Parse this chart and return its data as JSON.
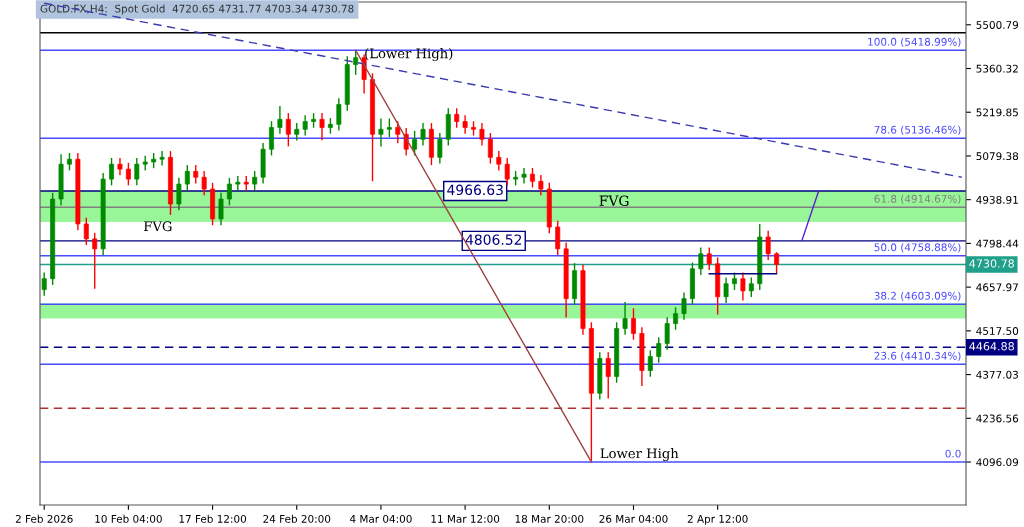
{
  "chart_data": {
    "type": "candlestick",
    "title": "GOLD.FX,H4:  Spot Gold  4720.65 4731.77 4703.34 4730.78",
    "categories": [
      "2 Feb 2026",
      null,
      null,
      null,
      null,
      null,
      null,
      null,
      null,
      null,
      "10 Feb 04:00",
      null,
      null,
      null,
      null,
      null,
      null,
      null,
      null,
      null,
      "17 Feb 12:00",
      null,
      null,
      null,
      null,
      null,
      null,
      null,
      null,
      null,
      "24 Feb 20:00",
      null,
      null,
      null,
      null,
      null,
      null,
      null,
      null,
      null,
      "4 Mar 04:00",
      null,
      null,
      null,
      null,
      null,
      null,
      null,
      null,
      null,
      "11 Mar 12:00",
      null,
      null,
      null,
      null,
      null,
      null,
      null,
      null,
      null,
      "18 Mar 20:00",
      null,
      null,
      null,
      null,
      null,
      null,
      null,
      null,
      null,
      "26 Mar 04:00",
      null,
      null,
      null,
      null,
      null,
      null,
      null,
      null,
      null,
      "2 Apr 12:00",
      null,
      null,
      null,
      null,
      null,
      null,
      null,
      null,
      null,
      null,
      null,
      null,
      null,
      null,
      null,
      null,
      null,
      null,
      null,
      null,
      null,
      null,
      null,
      null,
      null,
      null,
      null,
      null,
      null
    ],
    "ohlc": [
      [
        4650,
        4705,
        4630,
        4685
      ],
      [
        4685,
        4961,
        4665,
        4941
      ],
      [
        4941,
        5085,
        4921,
        5053
      ],
      [
        5053,
        5089,
        5033,
        5069
      ],
      [
        5069,
        5089,
        4841,
        4861
      ],
      [
        4861,
        4881,
        4793,
        4813
      ],
      [
        4813,
        4833,
        4653,
        4781
      ],
      [
        4781,
        5025,
        4761,
        5005
      ],
      [
        5005,
        5073,
        4985,
        5053
      ],
      [
        5053,
        5073,
        5017,
        5037
      ],
      [
        5037,
        5057,
        4985,
        5005
      ],
      [
        5005,
        5073,
        4985,
        5053
      ],
      [
        5053,
        5080,
        5033,
        5060
      ],
      [
        5060,
        5089,
        5040,
        5069
      ],
      [
        5069,
        5095,
        5049,
        5075
      ],
      [
        5075,
        5095,
        4890,
        4925
      ],
      [
        4925,
        5009,
        4905,
        4989
      ],
      [
        4989,
        5050,
        4969,
        5030
      ],
      [
        5030,
        5050,
        4991,
        5011
      ],
      [
        5011,
        5031,
        4953,
        4973
      ],
      [
        4973,
        4993,
        4857,
        4877
      ],
      [
        4877,
        4961,
        4857,
        4941
      ],
      [
        4941,
        5009,
        4921,
        4989
      ],
      [
        4989,
        5015,
        4969,
        4995
      ],
      [
        4995,
        5015,
        4969,
        4989
      ],
      [
        4989,
        5031,
        4969,
        5011
      ],
      [
        5011,
        5121,
        4991,
        5101
      ],
      [
        5101,
        5191,
        5081,
        5171
      ],
      [
        5171,
        5240,
        5151,
        5197
      ],
      [
        5197,
        5217,
        5110,
        5149
      ],
      [
        5149,
        5185,
        5129,
        5165
      ],
      [
        5165,
        5210,
        5145,
        5190
      ],
      [
        5190,
        5217,
        5170,
        5197
      ],
      [
        5197,
        5217,
        5130,
        5171
      ],
      [
        5171,
        5201,
        5151,
        5181
      ],
      [
        5181,
        5265,
        5161,
        5245
      ],
      [
        5245,
        5400,
        5225,
        5373
      ],
      [
        5373,
        5419,
        5340,
        5395
      ],
      [
        5395,
        5405,
        5280,
        5325
      ],
      [
        5325,
        5345,
        4998,
        5149
      ],
      [
        5149,
        5200,
        5110,
        5165
      ],
      [
        5165,
        5200,
        5140,
        5171
      ],
      [
        5171,
        5191,
        5120,
        5149
      ],
      [
        5149,
        5169,
        5081,
        5101
      ],
      [
        5101,
        5160,
        5081,
        5133
      ],
      [
        5133,
        5185,
        5113,
        5165
      ],
      [
        5165,
        5185,
        5050,
        5075
      ],
      [
        5075,
        5153,
        5055,
        5133
      ],
      [
        5133,
        5233,
        5113,
        5213
      ],
      [
        5213,
        5233,
        5170,
        5190
      ],
      [
        5190,
        5210,
        5151,
        5171
      ],
      [
        5171,
        5191,
        5145,
        5165
      ],
      [
        5165,
        5185,
        5113,
        5133
      ],
      [
        5133,
        5153,
        5055,
        5075
      ],
      [
        5075,
        5095,
        5033,
        5053
      ],
      [
        5053,
        5073,
        4985,
        5005
      ],
      [
        5005,
        5031,
        4985,
        5011
      ],
      [
        5011,
        5041,
        4991,
        5021
      ],
      [
        5021,
        5041,
        4978,
        4998
      ],
      [
        4998,
        5018,
        4953,
        4973
      ],
      [
        4973,
        4993,
        4831,
        4851
      ],
      [
        4851,
        4871,
        4761,
        4781
      ],
      [
        4781,
        4801,
        4560,
        4621
      ],
      [
        4621,
        4735,
        4601,
        4711
      ],
      [
        4711,
        4731,
        4505,
        4525
      ],
      [
        4525,
        4545,
        4100,
        4317
      ],
      [
        4317,
        4449,
        4297,
        4429
      ],
      [
        4429,
        4449,
        4300,
        4371
      ],
      [
        4371,
        4545,
        4351,
        4525
      ],
      [
        4525,
        4610,
        4505,
        4557
      ],
      [
        4557,
        4590,
        4489,
        4509
      ],
      [
        4509,
        4529,
        4340,
        4390
      ],
      [
        4390,
        4455,
        4370,
        4435
      ],
      [
        4435,
        4497,
        4415,
        4477
      ],
      [
        4477,
        4561,
        4457,
        4541
      ],
      [
        4541,
        4593,
        4521,
        4573
      ],
      [
        4573,
        4641,
        4553,
        4621
      ],
      [
        4621,
        4737,
        4601,
        4717
      ],
      [
        4717,
        4785,
        4697,
        4765
      ],
      [
        4765,
        4785,
        4713,
        4733
      ],
      [
        4733,
        4753,
        4570,
        4627
      ],
      [
        4627,
        4689,
        4607,
        4669
      ],
      [
        4669,
        4705,
        4649,
        4685
      ],
      [
        4685,
        4705,
        4615,
        4646
      ],
      [
        4646,
        4689,
        4626,
        4669
      ],
      [
        4669,
        4861,
        4649,
        4819
      ],
      [
        4819,
        4839,
        4745,
        4765
      ],
      [
        4765,
        4770,
        4703.34,
        4730.78
      ],
      null,
      null,
      null,
      null,
      null,
      null,
      null,
      null,
      null,
      null,
      null,
      null,
      null,
      null,
      null,
      null,
      null,
      null,
      null,
      null,
      null,
      null
    ],
    "series": [
      {
        "type": "line",
        "color": "#3a3ab0",
        "line_style": "dashed",
        "values": [
          5570,
          null,
          null,
          null,
          null,
          null,
          null,
          null,
          null,
          null,
          null,
          null,
          null,
          null,
          null,
          null,
          null,
          null,
          null,
          null,
          null,
          null,
          null,
          null,
          null,
          null,
          null,
          null,
          null,
          null,
          null,
          null,
          null,
          null,
          null,
          null,
          null,
          null,
          null,
          null,
          null,
          null,
          null,
          null,
          null,
          null,
          null,
          null,
          null,
          null,
          null,
          null,
          null,
          null,
          null,
          null,
          null,
          null,
          null,
          null,
          null,
          null,
          null,
          null,
          null,
          null,
          null,
          null,
          null,
          null,
          null,
          null,
          null,
          null,
          null,
          null,
          null,
          null,
          null,
          null,
          null,
          null,
          null,
          null,
          null,
          null,
          null,
          null,
          null,
          null,
          null,
          null,
          null,
          null,
          null,
          null,
          null,
          null,
          null,
          null,
          null,
          null,
          null,
          null,
          null,
          null,
          null,
          null,
          null,
          5011
        ]
      },
      {
        "type": "line",
        "color": "#a04040",
        "line_style": "solid",
        "values": [
          null,
          null,
          null,
          null,
          null,
          null,
          null,
          null,
          null,
          null,
          null,
          null,
          null,
          null,
          null,
          null,
          null,
          null,
          null,
          null,
          null,
          null,
          null,
          null,
          null,
          null,
          null,
          null,
          null,
          null,
          null,
          null,
          null,
          null,
          null,
          null,
          null,
          5419,
          null,
          null,
          null,
          null,
          null,
          null,
          null,
          null,
          null,
          null,
          null,
          null,
          null,
          null,
          null,
          null,
          null,
          null,
          null,
          null,
          null,
          null,
          null,
          null,
          null,
          null,
          null,
          4096,
          null,
          null,
          null,
          null,
          null,
          null,
          null,
          null,
          null,
          null,
          null,
          null,
          null,
          null,
          null,
          null,
          null,
          null,
          null,
          null,
          null,
          null,
          null,
          null,
          null,
          null,
          null,
          null,
          null,
          null,
          null,
          null,
          null,
          null,
          null,
          null,
          null,
          null,
          null,
          null,
          null,
          null,
          null,
          null
        ]
      },
      {
        "type": "line",
        "color": "#5a1fd0",
        "line_style": "solid",
        "values": [
          null,
          null,
          null,
          null,
          null,
          null,
          null,
          null,
          null,
          null,
          null,
          null,
          null,
          null,
          null,
          null,
          null,
          null,
          null,
          null,
          null,
          null,
          null,
          null,
          null,
          null,
          null,
          null,
          null,
          null,
          null,
          null,
          null,
          null,
          null,
          null,
          null,
          null,
          null,
          null,
          null,
          null,
          null,
          null,
          null,
          null,
          null,
          null,
          null,
          null,
          null,
          null,
          null,
          null,
          null,
          null,
          null,
          null,
          null,
          null,
          null,
          null,
          null,
          null,
          null,
          null,
          null,
          null,
          null,
          null,
          null,
          null,
          null,
          null,
          null,
          null,
          null,
          null,
          null,
          null,
          null,
          null,
          null,
          null,
          null,
          null,
          null,
          null,
          null,
          null,
          4807,
          null,
          4967,
          null,
          null,
          null,
          null,
          null,
          null,
          null,
          null,
          null,
          null,
          null,
          null,
          null,
          null,
          null,
          null,
          null
        ]
      },
      {
        "type": "line",
        "color": "#000080",
        "line_style": "solid",
        "values": [
          null,
          null,
          null,
          null,
          null,
          null,
          null,
          null,
          null,
          null,
          null,
          null,
          null,
          null,
          null,
          null,
          null,
          null,
          null,
          null,
          null,
          null,
          null,
          null,
          null,
          null,
          null,
          null,
          null,
          null,
          null,
          null,
          null,
          null,
          null,
          null,
          null,
          null,
          null,
          null,
          null,
          null,
          null,
          null,
          null,
          null,
          null,
          null,
          null,
          null,
          null,
          null,
          null,
          null,
          null,
          null,
          null,
          null,
          null,
          null,
          null,
          null,
          null,
          null,
          null,
          null,
          null,
          null,
          null,
          null,
          null,
          null,
          null,
          null,
          null,
          null,
          null,
          null,
          null,
          4701,
          null,
          null,
          null,
          null,
          null,
          null,
          null,
          4701,
          null,
          null,
          null,
          null,
          null,
          null,
          null,
          null,
          null,
          null,
          null,
          null,
          null,
          null,
          null,
          null,
          null,
          null,
          null,
          null,
          null,
          null
        ]
      }
    ],
    "ylim": [
      3958,
      5574
    ],
    "yticks": [
      4096.09,
      4236.56,
      4377.03,
      {
        "value": 4517.5,
        "label": "4517.50"
      },
      4657.97,
      4798.44,
      4938.91,
      5079.38,
      5219.85,
      5360.32,
      5500.79
    ],
    "ref_lines": [
      {
        "axis": "y",
        "value": 5418.99,
        "label": "100.0 (5418.99%)",
        "color": "#4a4aff"
      },
      {
        "axis": "y",
        "value": 5136.46,
        "label": "78.6 (5136.46%)",
        "color": "#4a4aff"
      },
      {
        "axis": "y",
        "value": 4914.67,
        "label": "61.8 (4914.67%)",
        "color": "#808080"
      },
      {
        "axis": "y",
        "value": 4758.88,
        "label": "50.0 (4758.88%)",
        "color": "#4a4aff"
      },
      {
        "axis": "y",
        "value": 4603.09,
        "label": "38.2 (4603.09%)",
        "color": "#4a4aff"
      },
      {
        "axis": "y",
        "value": 4410.34,
        "label": "23.6 (4410.34%)",
        "color": "#4a4aff"
      },
      {
        "axis": "y",
        "value": 4096.09,
        "color": "#4a4aff"
      },
      {
        "axis": "y",
        "value": 4966.63,
        "label": "4966.63",
        "color": "#000080"
      },
      {
        "axis": "y",
        "value": 4806.52,
        "label": "4806.52",
        "color": "#000080"
      },
      {
        "axis": "y",
        "value": 4730.78,
        "label": "4730.78",
        "color": "#20a08a"
      },
      {
        "axis": "y",
        "value": 4464.88,
        "label": "4464.88",
        "color": "#000080",
        "line_style": "dashed"
      },
      {
        "axis": "y",
        "value": 4269,
        "color": "#b03030",
        "line_style": "dashed"
      },
      {
        "axis": "y",
        "value": 5475,
        "color": "#000000"
      }
    ],
    "bands": [
      {
        "axis": "y",
        "from": 4867,
        "to": 4966.63,
        "label": "FVG",
        "color": "#98f598"
      },
      {
        "axis": "y",
        "from": 4557,
        "to": 4605,
        "color": "#98f598"
      }
    ],
    "annotations": [
      "(Lower High)",
      "Lower High",
      "FVG",
      {
        "text": "0.0",
        "y": 4096.09
      }
    ],
    "legend": false,
    "grid": false
  }
}
